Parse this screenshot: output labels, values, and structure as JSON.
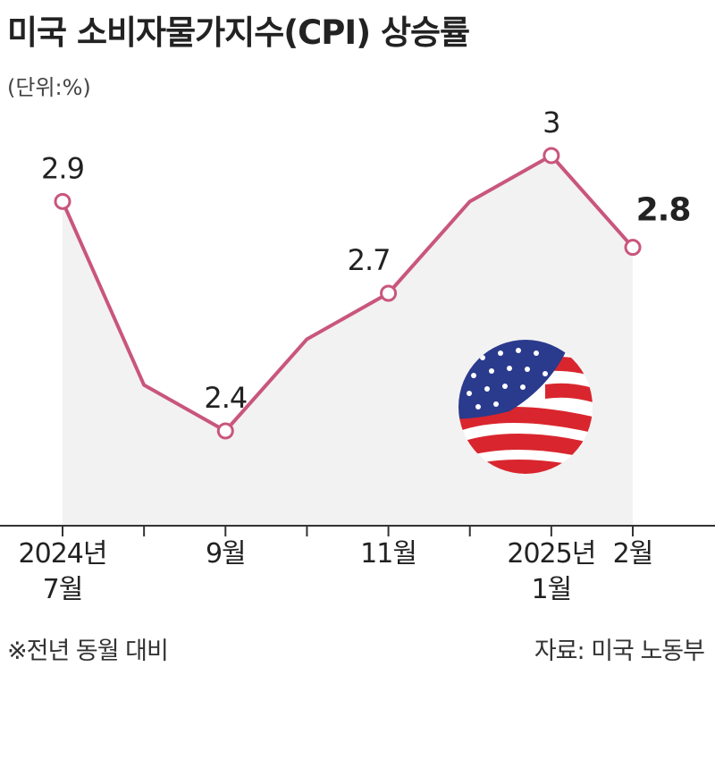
{
  "title": "미국 소비자물가지수(CPI) 상승률",
  "unit": "(단위:%)",
  "chart_data": {
    "type": "line",
    "categories": [
      "2024년\n7월",
      null,
      "9월",
      null,
      "11월",
      null,
      "2025년\n1월",
      "2월"
    ],
    "values": [
      2.9,
      2.5,
      2.4,
      2.6,
      2.7,
      2.9,
      3,
      2.8
    ],
    "value_labels": [
      "2.9",
      null,
      "2.4",
      null,
      "2.7",
      null,
      "3",
      "2.8"
    ],
    "color": "#c9567c"
  },
  "footnote": "※전년 동월 대비",
  "source": "자료: 미국 노동부"
}
